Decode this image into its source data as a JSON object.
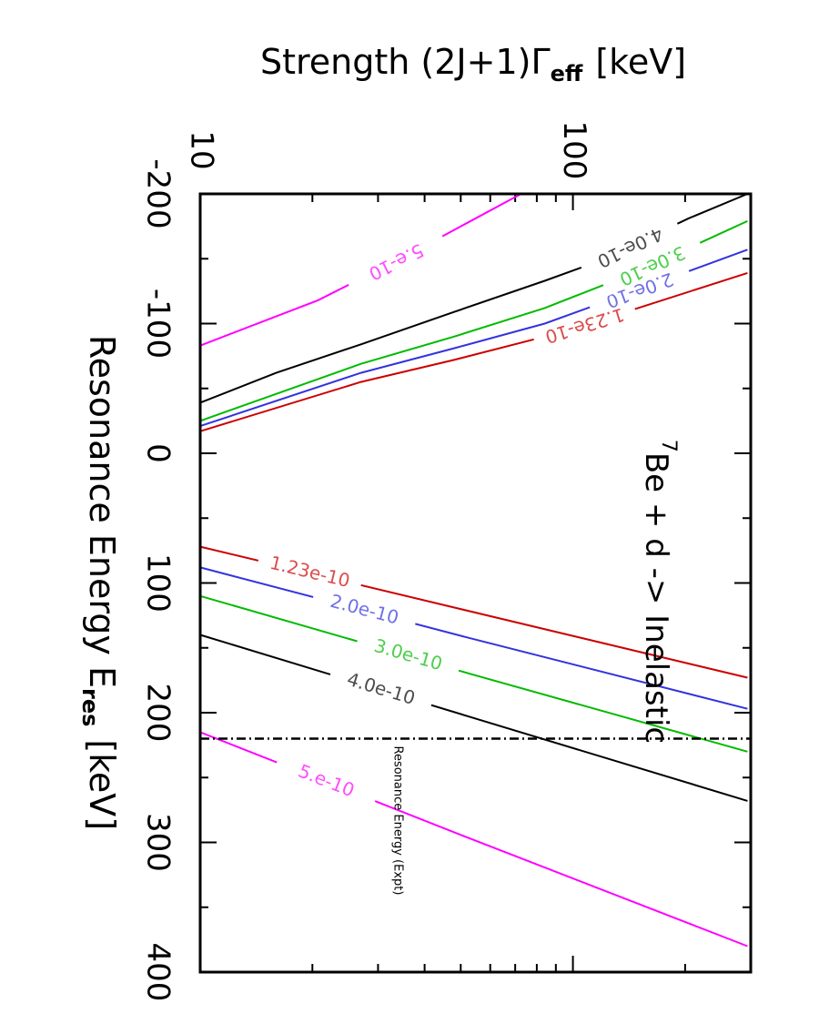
{
  "chart_data": {
    "type": "contour-line",
    "log_y": true,
    "x_label": {
      "text": "Resonance Energy E",
      "sub": "res",
      "unit": "[keV]"
    },
    "y_label": {
      "text": "Strength (2J+1)Γ",
      "sub": "eff",
      "unit": "[keV]"
    },
    "annotation": {
      "sup": "7",
      "text": "Be + d -> Inelastic"
    },
    "xlim": [
      -200,
      400
    ],
    "xticks": [
      -200,
      -100,
      0,
      100,
      200,
      300,
      400
    ],
    "ylim": [
      10,
      300
    ],
    "yticks": [
      10,
      100
    ],
    "vline": {
      "x": 220,
      "label": "Resonance Energy (Expt)"
    },
    "series": [
      {
        "name": "1.23e-10",
        "color": "#cc0000",
        "x": [
          72,
          120,
          173
        ],
        "values": [
          10,
          49.8,
          294
        ]
      },
      {
        "name": "2.0e-10",
        "color": "#3333dd",
        "x": [
          88,
          142,
          197
        ],
        "values": [
          10,
          52,
          294
        ]
      },
      {
        "name": "3.0e-10",
        "color": "#00bb00",
        "x": [
          110,
          170,
          230
        ],
        "values": [
          10,
          53,
          294
        ]
      },
      {
        "name": "4.0e-10",
        "color": "#000000",
        "x": [
          140,
          204,
          268
        ],
        "values": [
          10,
          54,
          294
        ]
      },
      {
        "name": "5.e-10",
        "color": "#ff00ff",
        "x": [
          215,
          298,
          380
        ],
        "values": [
          10,
          54,
          294
        ]
      },
      {
        "name": "1.23e-10",
        "color": "#cc0000",
        "x": [
          -139,
          -111,
          -90,
          -72,
          -55,
          -17
        ],
        "values": [
          294,
          146,
          84,
          48,
          27,
          10
        ]
      },
      {
        "name": "2.0e-10",
        "color": "#3333dd",
        "x": [
          -157,
          -125,
          -100,
          -81,
          -62,
          -21
        ],
        "values": [
          294,
          146,
          84,
          48,
          27,
          10
        ]
      },
      {
        "name": "3.0e-10",
        "color": "#00bb00",
        "x": [
          -179,
          -139,
          -112,
          -90,
          -69,
          -25
        ],
        "values": [
          294,
          146,
          84,
          48,
          27,
          10
        ]
      },
      {
        "name": "4.0e-10",
        "color": "#000000",
        "x": [
          -200,
          -181,
          -148,
          -133,
          -109,
          -84,
          -62,
          -39
        ],
        "values": [
          294,
          204,
          117,
          84,
          48,
          27,
          16,
          10
        ]
      },
      {
        "name": "5.e-10",
        "color": "#ff00ff",
        "x": [
          -200,
          -153,
          -118,
          -83
        ],
        "values": [
          72.6,
          36.1,
          20.7,
          10
        ]
      }
    ]
  }
}
